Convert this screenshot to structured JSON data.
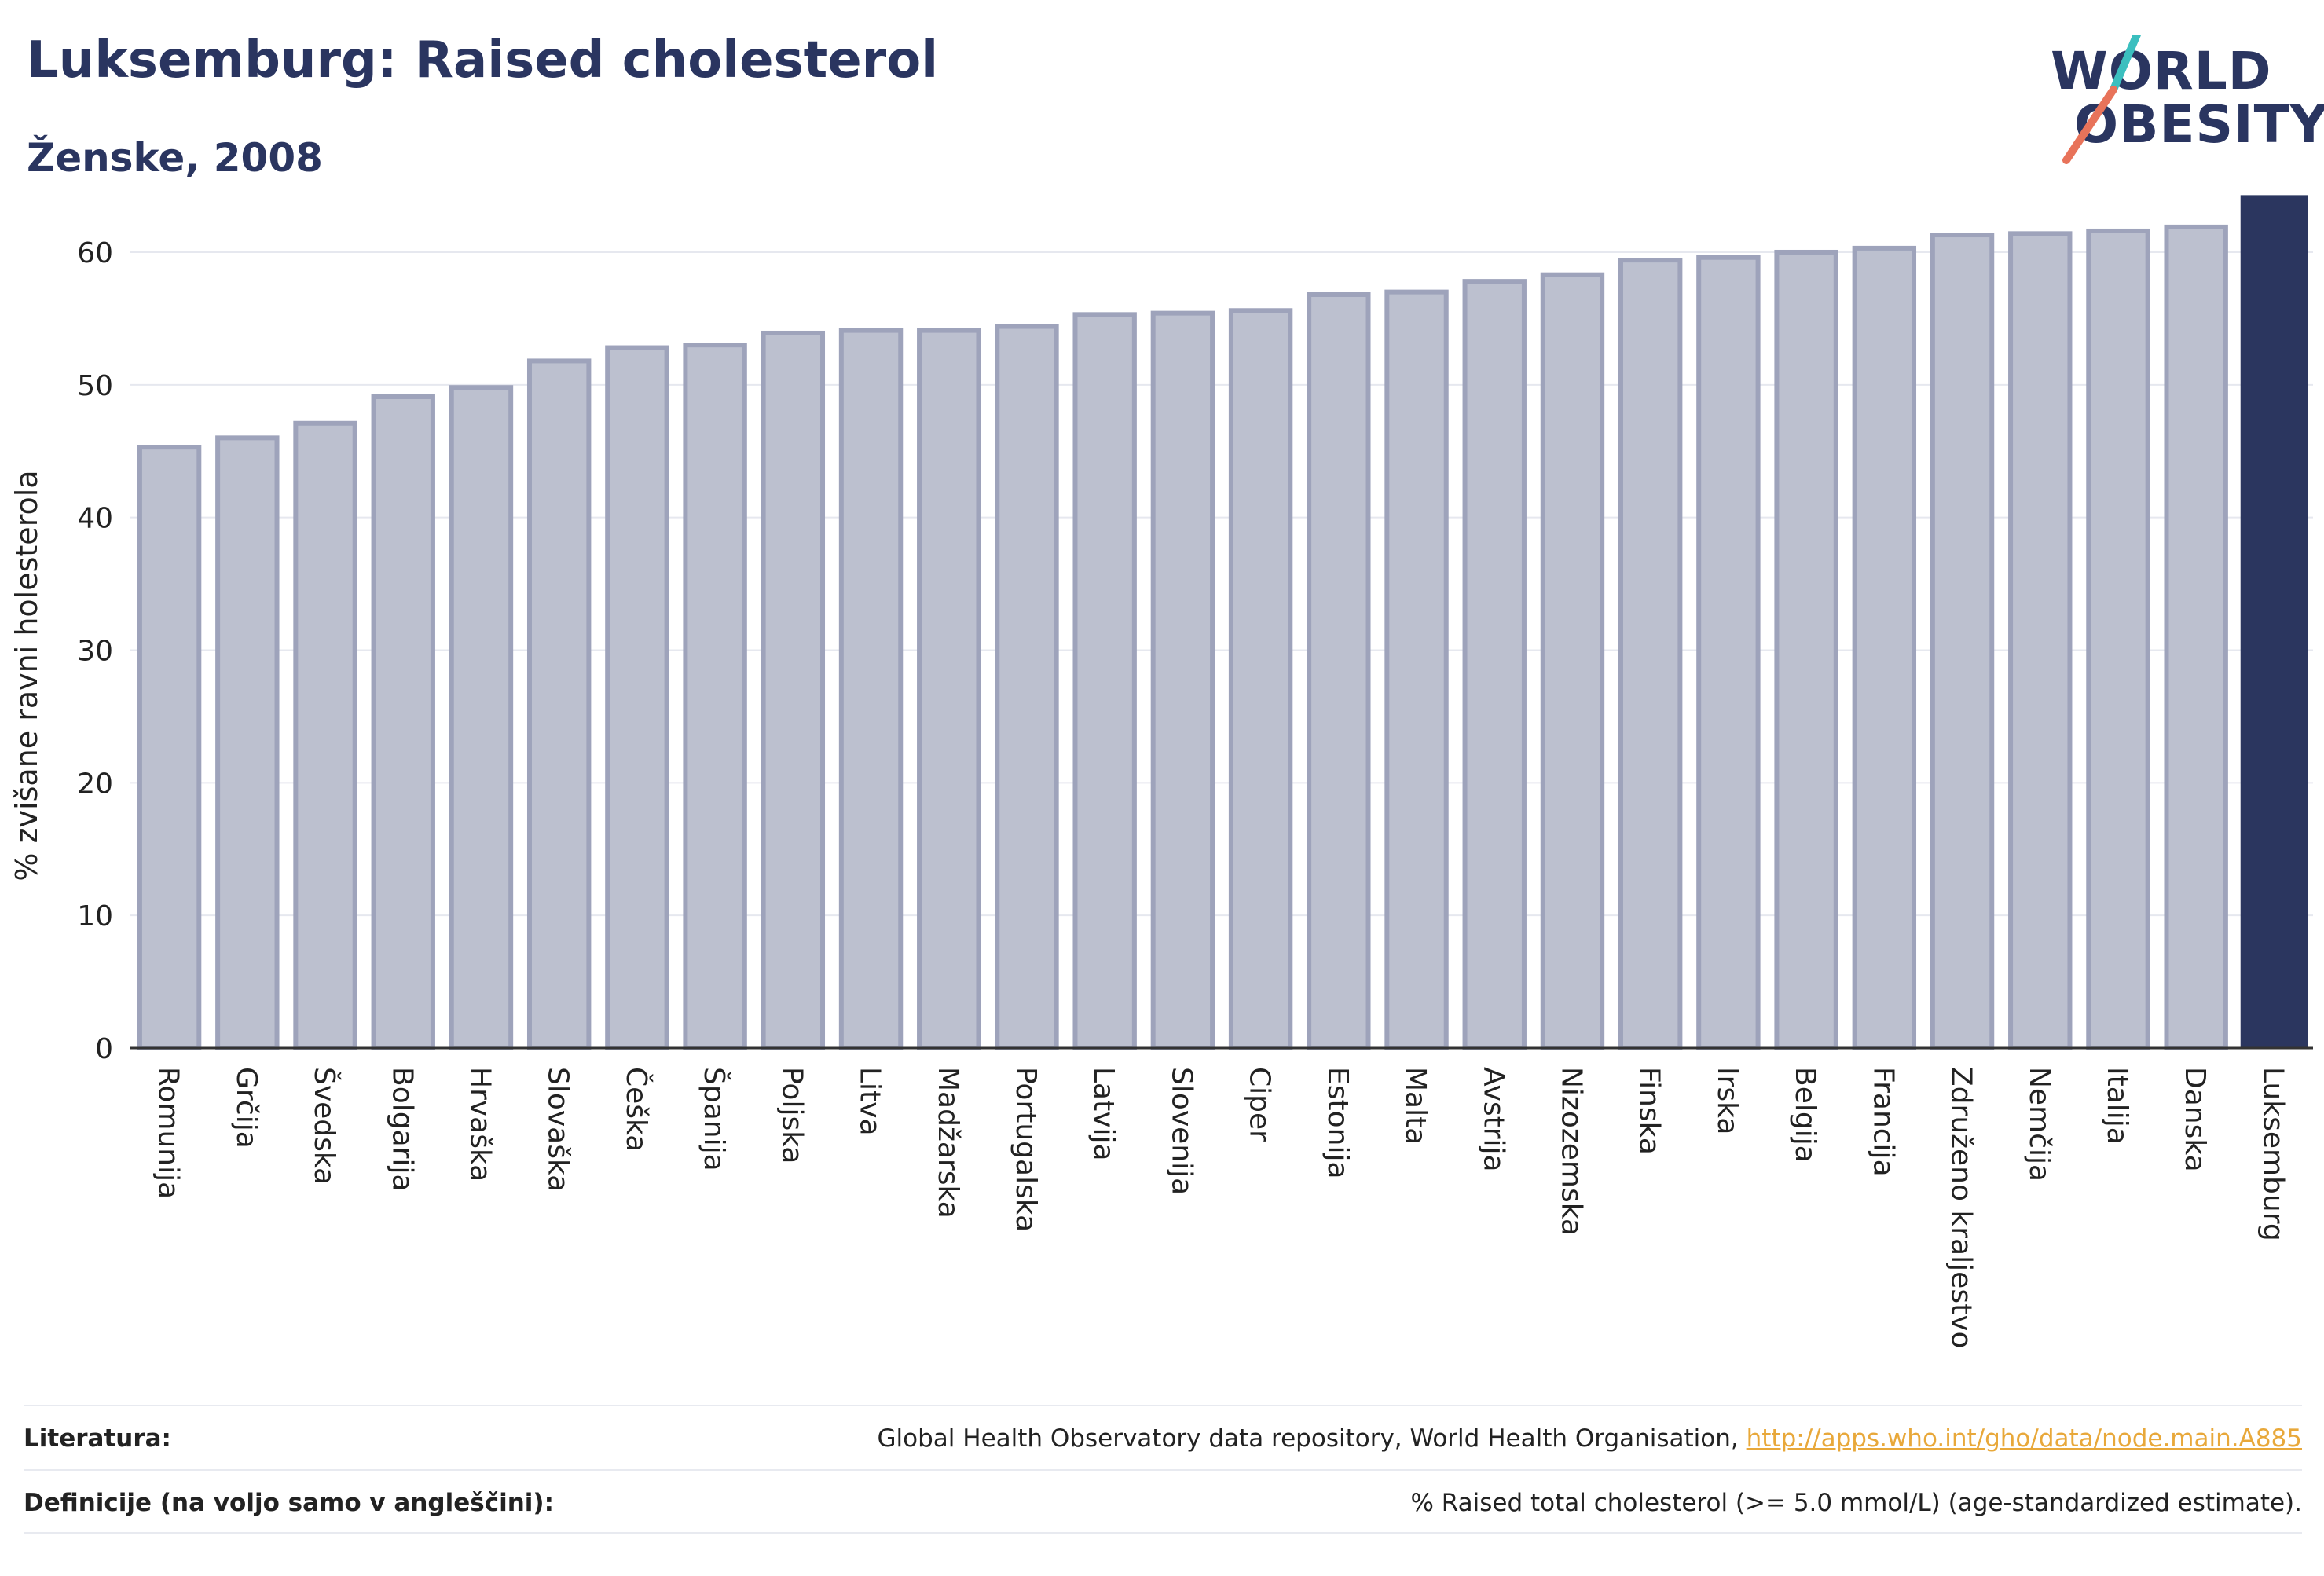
{
  "title": "Luksemburg: Raised cholesterol",
  "subtitle": "Ženske, 2008",
  "logo": {
    "line1": "WORLD",
    "line2": "OBESITY"
  },
  "colors": {
    "bar": "#bcc0cf",
    "bar_border": "#9ea3bb",
    "highlight": "#2b365f",
    "grid": "#e6e8ef",
    "link": "#e8a83a"
  },
  "chart_data": {
    "type": "bar",
    "ylabel": "% zvišane ravni holesterola",
    "ylim": [
      0,
      64.5
    ],
    "yticks": [
      0,
      10,
      20,
      30,
      40,
      50,
      60
    ],
    "grid": true,
    "highlight": "Luksemburg",
    "categories": [
      "Romunija",
      "Grčija",
      "Švedska",
      "Bolgarija",
      "Hrvaška",
      "Slovaška",
      "Češka",
      "Španija",
      "Poljska",
      "Litva",
      "Madžarska",
      "Portugalska",
      "Latvija",
      "Slovenija",
      "Ciper",
      "Estonija",
      "Malta",
      "Avstrija",
      "Nizozemska",
      "Finska",
      "Irska",
      "Belgija",
      "Francija",
      "Združeno kraljestvo",
      "Nemčija",
      "Italija",
      "Danska",
      "Luksemburg"
    ],
    "values": [
      45.3,
      46.0,
      47.1,
      49.1,
      49.8,
      51.8,
      52.8,
      53.0,
      53.9,
      54.1,
      54.1,
      54.4,
      55.3,
      55.4,
      55.6,
      56.8,
      57.0,
      57.8,
      58.3,
      59.4,
      59.6,
      60.0,
      60.3,
      61.3,
      61.4,
      61.6,
      61.9,
      64.3
    ]
  },
  "footer": {
    "literature_label": "Literatura:",
    "literature_text": "Global Health Observatory data repository, World Health Organisation, ",
    "literature_link": "http://apps.who.int/gho/data/node.main.A885",
    "definition_label": "Definicije (na voljo samo v angleščini):",
    "definition_text": "% Raised total cholesterol (>= 5.0 mmol/L) (age-standardized estimate)."
  }
}
